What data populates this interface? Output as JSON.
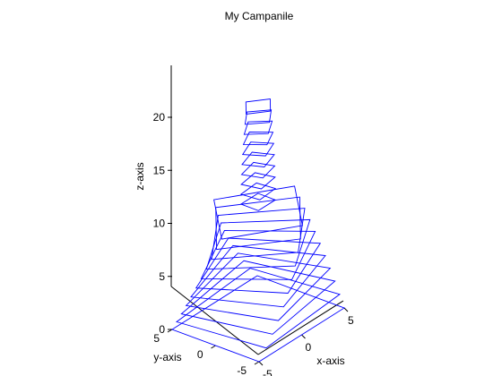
{
  "chart_data": {
    "type": "line",
    "subtype": "3d-wireframe",
    "title": "My Campanile",
    "xlabel": "x-axis",
    "ylabel": "y-axis",
    "zlabel": "z-axis",
    "xlim": [
      -5,
      5
    ],
    "ylim": [
      -5,
      5
    ],
    "zlim": [
      0,
      20
    ],
    "x_ticks": [
      "-5",
      "0",
      "5"
    ],
    "y_ticks": [
      "-5",
      "0",
      "5"
    ],
    "z_ticks": [
      "0",
      "5",
      "10",
      "15",
      "20"
    ],
    "grid": false,
    "line_color": "#0000ff",
    "series": [
      {
        "shape": "rotated square cross-sections",
        "levels_z": [
          0,
          1,
          2,
          3,
          4,
          5,
          6,
          7,
          8,
          9,
          10,
          11,
          12,
          13,
          14,
          15,
          16,
          17,
          18,
          19,
          20
        ],
        "half_widths": [
          5.0,
          4.76,
          4.54,
          4.35,
          4.17,
          4.0,
          3.85,
          3.7,
          3.57,
          3.45,
          3.33,
          1.0,
          1.0,
          1.0,
          1.0,
          1.0,
          1.0,
          1.0,
          1.0,
          1.0,
          1.0
        ],
        "rotation_deg": [
          0,
          5,
          10,
          15,
          20,
          25,
          30,
          35,
          40,
          45,
          50,
          0,
          5,
          10,
          15,
          20,
          25,
          30,
          35,
          40,
          45
        ]
      }
    ]
  }
}
